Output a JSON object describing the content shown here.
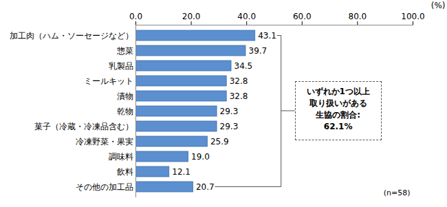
{
  "chart_data": {
    "type": "bar",
    "orientation": "horizontal",
    "categories": [
      "加工肉（ハム・ソーセージなど）",
      "惣菜",
      "乳製品",
      "ミールキット",
      "漬物",
      "乾物",
      "菓子（冷蔵・冷凍品含む）",
      "冷凍野菜・果実",
      "調味料",
      "飲料",
      "その他の加工品"
    ],
    "values": [
      43.1,
      39.7,
      34.5,
      32.8,
      32.8,
      29.3,
      29.3,
      25.9,
      19.0,
      12.1,
      20.7
    ],
    "value_labels": [
      "43.1",
      "39.7",
      "34.5",
      "32.8",
      "32.8",
      "29.3",
      "29.3",
      "25.9",
      "19.0",
      "12.1",
      "20.7"
    ],
    "data_labels": true,
    "color": "#5b8fd0",
    "xlabel": "(%)",
    "xlim": [
      0,
      100
    ],
    "xticks": [
      {
        "value": 0,
        "label": "0.0"
      },
      {
        "value": 20,
        "label": "20.0"
      },
      {
        "value": 40,
        "label": "40.0"
      },
      {
        "value": 60,
        "label": "60.0"
      },
      {
        "value": 80,
        "label": "80.0"
      },
      {
        "value": 100,
        "label": "100.0"
      }
    ],
    "grid": false,
    "annotation": [
      "いずれか1つ以上",
      "取り扱いがある",
      "生協の割合:",
      "62.1%"
    ],
    "note": "(n=58)"
  }
}
